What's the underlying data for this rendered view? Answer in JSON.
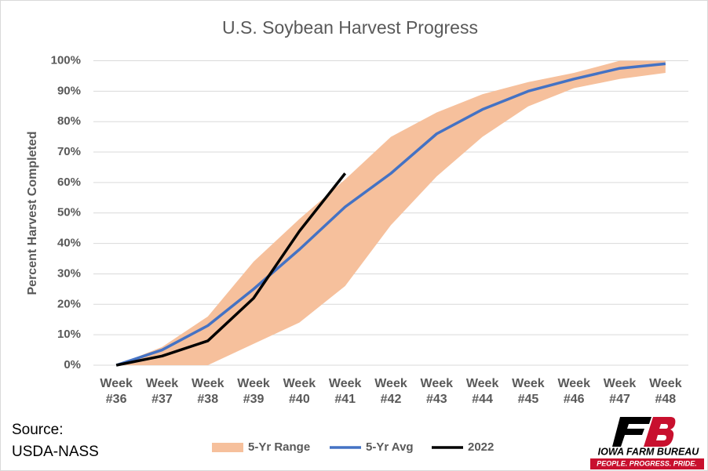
{
  "chart_data": {
    "type": "line",
    "title": "U.S. Soybean Harvest Progress",
    "y_label": "Percent Harvest Completed",
    "categories": [
      "Week #36",
      "Week #37",
      "Week #38",
      "Week #39",
      "Week #40",
      "Week #41",
      "Week #42",
      "Week #43",
      "Week #44",
      "Week #45",
      "Week #46",
      "Week #47",
      "Week #48"
    ],
    "ylim": [
      0,
      100
    ],
    "yticks": [
      {
        "value": 0,
        "label": "0%"
      },
      {
        "value": 10,
        "label": "10%"
      },
      {
        "value": 20,
        "label": "20%"
      },
      {
        "value": 30,
        "label": "30%"
      },
      {
        "value": 40,
        "label": "40%"
      },
      {
        "value": 50,
        "label": "50%"
      },
      {
        "value": 60,
        "label": "60%"
      },
      {
        "value": 70,
        "label": "70%"
      },
      {
        "value": 80,
        "label": "80%"
      },
      {
        "value": 90,
        "label": "90%"
      },
      {
        "value": 100,
        "label": "100%"
      }
    ],
    "grid": true,
    "legend": "bottom",
    "series": [
      {
        "name": "5-Yr Range",
        "kind": "range",
        "color": "#f6c09c",
        "low": [
          0,
          0,
          0,
          7,
          14,
          26,
          46,
          62,
          75,
          85,
          91,
          94,
          96
        ],
        "high": [
          0,
          6,
          16,
          34,
          48,
          61,
          75,
          83,
          89,
          93,
          96,
          100,
          100
        ]
      },
      {
        "name": "5-Yr Avg",
        "color": "#4472c4",
        "values": [
          0,
          5,
          13,
          25,
          38,
          52,
          63,
          76,
          84,
          90,
          94,
          97.5,
          99
        ]
      },
      {
        "name": "2022",
        "color": "#000000",
        "values": [
          0,
          3,
          8,
          22,
          44,
          63,
          null,
          null,
          null,
          null,
          null,
          null,
          null
        ]
      }
    ],
    "source": [
      "Source:",
      "USDA-NASS"
    ],
    "logo": {
      "name": "IOWA FARM BUREAU",
      "tagline": "PEOPLE. PROGRESS. PRIDE."
    }
  }
}
